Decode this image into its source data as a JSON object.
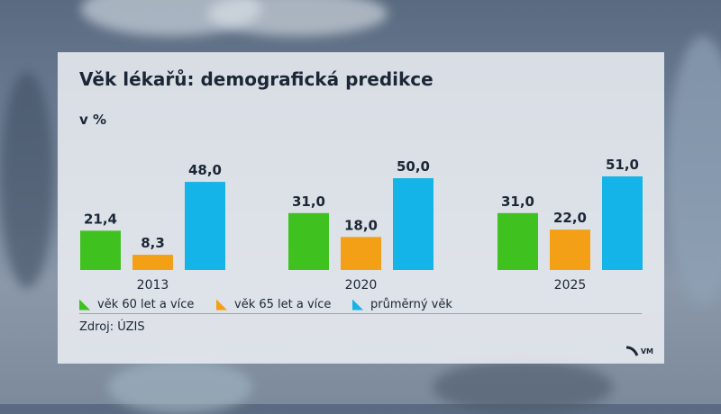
{
  "title": "Věk lékařů: demografická predikce",
  "unit": "v %",
  "source": "Zdroj: ÚZIS",
  "logo_text": "VM",
  "colors": {
    "series_60": "#3fc21f",
    "series_65": "#f4a016",
    "series_avg": "#15b4e8"
  },
  "legend": [
    {
      "label": "věk 60 let a více",
      "color": "#3fc21f"
    },
    {
      "label": "věk 65 let a více",
      "color": "#f4a016"
    },
    {
      "label": "průměrný věk",
      "color": "#15b4e8"
    }
  ],
  "chart_data": {
    "type": "bar",
    "title": "Věk lékařů: demografická predikce",
    "ylabel": "v %",
    "xlabel": "",
    "categories": [
      "2013",
      "2020",
      "2025"
    ],
    "series": [
      {
        "name": "věk 60 let a více",
        "values": [
          21.4,
          31.0,
          31.0
        ],
        "labels": [
          "21,4",
          "31,0",
          "31,0"
        ]
      },
      {
        "name": "věk 65 let a více",
        "values": [
          8.3,
          18.0,
          22.0
        ],
        "labels": [
          "8,3",
          "18,0",
          "22,0"
        ]
      },
      {
        "name": "průměrný věk",
        "values": [
          48.0,
          50.0,
          51.0
        ],
        "labels": [
          "48,0",
          "50,0",
          "51,0"
        ]
      }
    ],
    "ylim": [
      0,
      51
    ]
  }
}
